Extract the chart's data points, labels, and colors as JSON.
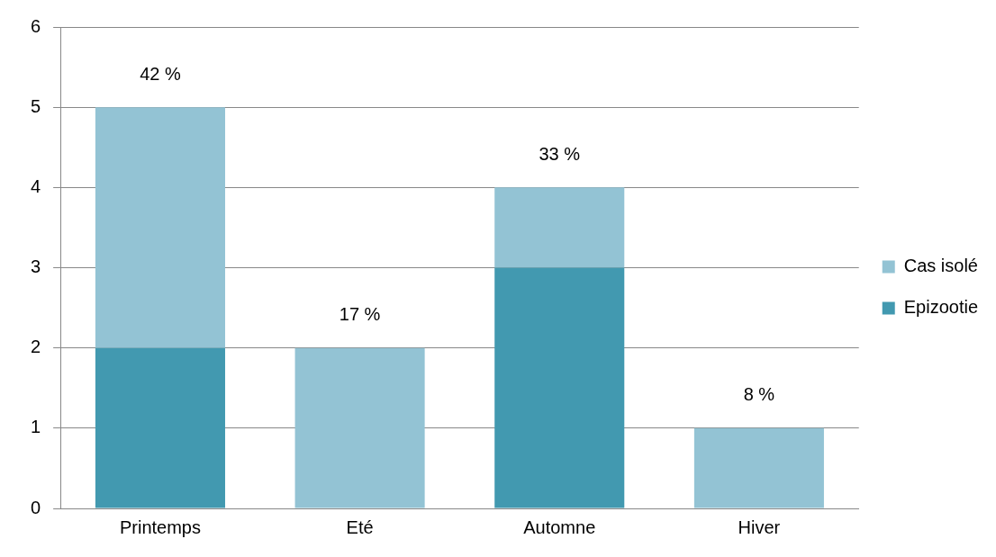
{
  "chart_data": {
    "type": "bar",
    "stacked": true,
    "categories": [
      "Printemps",
      "Eté",
      "Automne",
      "Hiver"
    ],
    "series": [
      {
        "name": "Epizootie",
        "color": "#4299b0",
        "values": [
          2,
          0,
          3,
          0
        ]
      },
      {
        "name": "Cas isolé",
        "color": "#93c3d4",
        "values": [
          3,
          2,
          1,
          1
        ]
      }
    ],
    "annotations": [
      {
        "text": "42 %",
        "x": "Printemps",
        "y": 5
      },
      {
        "text": "17 %",
        "x": "Eté",
        "y": 2
      },
      {
        "text": "33 %",
        "x": "Automne",
        "y": 4
      },
      {
        "text": "8 %",
        "x": "Hiver",
        "y": 1
      }
    ],
    "ylim": [
      0,
      6
    ],
    "yticks": [
      0,
      1,
      2,
      3,
      4,
      5,
      6
    ],
    "grid": "y",
    "legend": "right"
  }
}
